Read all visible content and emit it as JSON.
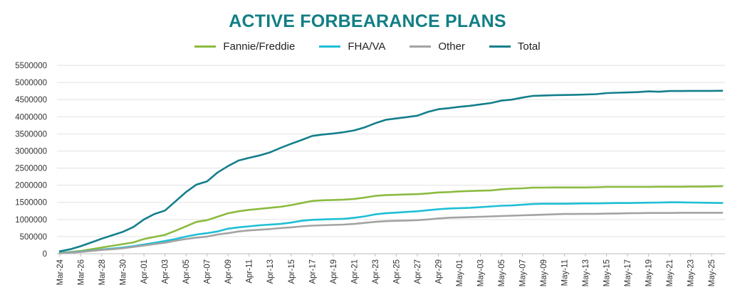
{
  "chart_data": {
    "type": "line",
    "title": "ACTIVE FORBEARANCE PLANS",
    "xlabel": "",
    "ylabel": "",
    "ylim": [
      0,
      5500000
    ],
    "yticks": [
      0,
      500000,
      1000000,
      1500000,
      2000000,
      2500000,
      3000000,
      3500000,
      4000000,
      4500000,
      5000000,
      5500000
    ],
    "ytick_labels": [
      "0",
      "500000",
      "1000000",
      "1500000",
      "2000000",
      "2500000",
      "3000000",
      "3500000",
      "4000000",
      "4500000",
      "5000000",
      "5500000"
    ],
    "grid": true,
    "legend_position": "top-center",
    "categories": [
      "Mar-24",
      "Mar-25",
      "Mar-26",
      "Mar-27",
      "Mar-28",
      "Mar-29",
      "Mar-30",
      "Mar-31",
      "Apr-01",
      "Apr-02",
      "Apr-03",
      "Apr-04",
      "Apr-05",
      "Apr-06",
      "Apr-07",
      "Apr-08",
      "Apr-09",
      "Apr-10",
      "Apr-11",
      "Apr-12",
      "Apr-13",
      "Apr-14",
      "Apr-15",
      "Apr-16",
      "Apr-17",
      "Apr-18",
      "Apr-19",
      "Apr-20",
      "Apr-21",
      "Apr-22",
      "Apr-23",
      "Apr-24",
      "Apr-25",
      "Apr-26",
      "Apr-27",
      "Apr-28",
      "Apr-29",
      "Apr-30",
      "May-01",
      "May-02",
      "May-03",
      "May-04",
      "May-05",
      "May-06",
      "May-07",
      "May-08",
      "May-09",
      "May-10",
      "May-11",
      "May-12",
      "May-13",
      "May-14",
      "May-15",
      "May-16",
      "May-17",
      "May-18",
      "May-19",
      "May-20",
      "May-21",
      "May-22",
      "May-23",
      "May-24",
      "May-25",
      "May-26"
    ],
    "tick_labels": [
      "Mar-24",
      "Mar-26",
      "Mar-28",
      "Mar-30",
      "Apr-01",
      "Apr-03",
      "Apr-05",
      "Apr-07",
      "Apr-09",
      "Apr-11",
      "Apr-13",
      "Apr-15",
      "Apr-17",
      "Apr-19",
      "Apr-21",
      "Apr-23",
      "Apr-25",
      "Apr-27",
      "Apr-29",
      "May-01",
      "May-03",
      "May-05",
      "May-07",
      "May-09",
      "May-11",
      "May-13",
      "May-15",
      "May-17",
      "May-19",
      "May-21",
      "May-23",
      "May-25"
    ],
    "series": [
      {
        "name": "Fannie/Freddie",
        "color": "#8bbb40",
        "values": [
          30000,
          50000,
          80000,
          130000,
          180000,
          230000,
          280000,
          330000,
          430000,
          490000,
          550000,
          670000,
          800000,
          930000,
          980000,
          1080000,
          1180000,
          1240000,
          1280000,
          1310000,
          1340000,
          1370000,
          1420000,
          1480000,
          1540000,
          1560000,
          1570000,
          1580000,
          1600000,
          1640000,
          1690000,
          1710000,
          1720000,
          1730000,
          1740000,
          1760000,
          1790000,
          1800000,
          1820000,
          1830000,
          1840000,
          1850000,
          1880000,
          1900000,
          1910000,
          1930000,
          1930000,
          1935000,
          1935000,
          1935000,
          1935000,
          1940000,
          1950000,
          1950000,
          1950000,
          1950000,
          1950000,
          1955000,
          1955000,
          1955000,
          1960000,
          1960000,
          1965000,
          1970000
        ]
      },
      {
        "name": "FHA/VA",
        "color": "#1ebfd6",
        "values": [
          20000,
          40000,
          60000,
          90000,
          120000,
          150000,
          180000,
          220000,
          270000,
          320000,
          370000,
          430000,
          500000,
          560000,
          600000,
          650000,
          730000,
          770000,
          800000,
          830000,
          850000,
          870000,
          910000,
          960000,
          990000,
          1000000,
          1010000,
          1020000,
          1050000,
          1090000,
          1150000,
          1180000,
          1200000,
          1220000,
          1240000,
          1270000,
          1300000,
          1320000,
          1330000,
          1340000,
          1360000,
          1380000,
          1400000,
          1410000,
          1430000,
          1450000,
          1460000,
          1460000,
          1460000,
          1465000,
          1470000,
          1470000,
          1475000,
          1480000,
          1480000,
          1485000,
          1490000,
          1495000,
          1500000,
          1500000,
          1495000,
          1490000,
          1485000,
          1480000
        ]
      },
      {
        "name": "Other",
        "color": "#a3a3a3",
        "values": [
          10000,
          30000,
          50000,
          80000,
          110000,
          130000,
          160000,
          200000,
          240000,
          280000,
          320000,
          380000,
          430000,
          470000,
          500000,
          560000,
          600000,
          650000,
          680000,
          700000,
          720000,
          750000,
          770000,
          800000,
          820000,
          830000,
          840000,
          850000,
          870000,
          900000,
          930000,
          950000,
          960000,
          970000,
          980000,
          1000000,
          1030000,
          1050000,
          1060000,
          1070000,
          1080000,
          1090000,
          1100000,
          1110000,
          1120000,
          1130000,
          1140000,
          1150000,
          1160000,
          1160000,
          1165000,
          1165000,
          1170000,
          1175000,
          1180000,
          1185000,
          1190000,
          1190000,
          1190000,
          1195000,
          1195000,
          1195000,
          1195000,
          1195000
        ]
      },
      {
        "name": "Total",
        "color": "#137f8b",
        "values": [
          70000,
          130000,
          220000,
          330000,
          440000,
          540000,
          640000,
          780000,
          1000000,
          1160000,
          1260000,
          1530000,
          1800000,
          2020000,
          2110000,
          2370000,
          2560000,
          2720000,
          2800000,
          2870000,
          2960000,
          3090000,
          3210000,
          3320000,
          3440000,
          3480000,
          3510000,
          3550000,
          3600000,
          3690000,
          3810000,
          3910000,
          3950000,
          3990000,
          4030000,
          4140000,
          4220000,
          4250000,
          4290000,
          4320000,
          4360000,
          4400000,
          4470000,
          4500000,
          4560000,
          4610000,
          4620000,
          4630000,
          4635000,
          4640000,
          4650000,
          4660000,
          4690000,
          4700000,
          4710000,
          4720000,
          4740000,
          4730000,
          4750000,
          4750000,
          4755000,
          4755000,
          4755000,
          4760000
        ]
      }
    ]
  }
}
